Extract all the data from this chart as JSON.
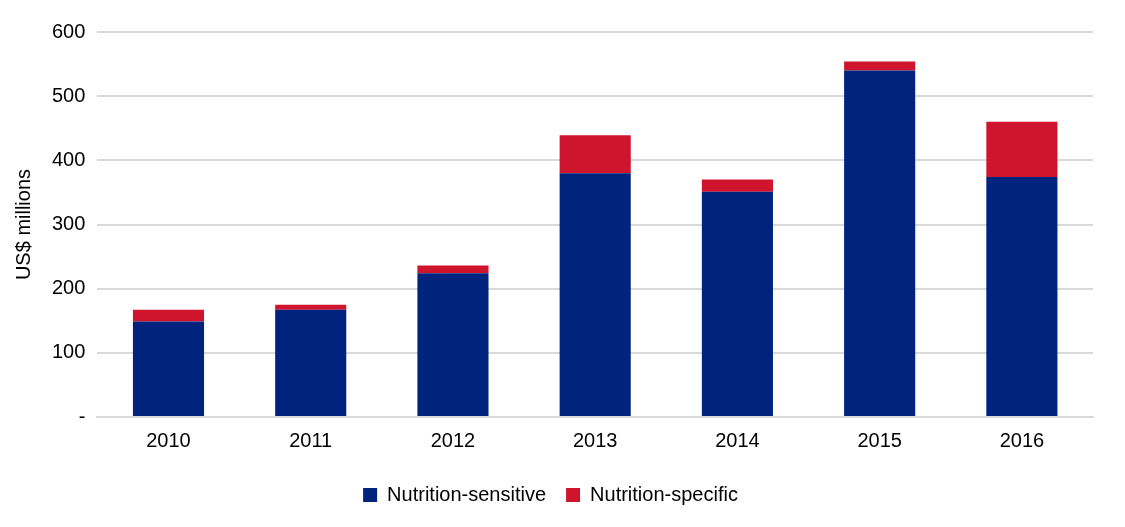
{
  "chart_data": {
    "type": "bar",
    "ylabel": "US$ millions",
    "categories": [
      "2010",
      "2011",
      "2012",
      "2013",
      "2014",
      "2015",
      "2016"
    ],
    "series": [
      {
        "name": "Nutrition-sensitive",
        "color": "#00237e",
        "values": [
          149,
          167,
          224,
          380,
          351,
          540,
          374
        ]
      },
      {
        "name": "Nutrition-specific",
        "color": "#cf152d",
        "values": [
          18,
          8,
          12,
          59,
          19,
          14,
          86
        ]
      }
    ],
    "stacked": true,
    "ylim": [
      0,
      600
    ],
    "yticks": [
      {
        "value": 0,
        "label": "-"
      },
      100,
      200,
      300,
      400,
      500,
      600
    ],
    "grid": "y",
    "legend": "bottom"
  }
}
